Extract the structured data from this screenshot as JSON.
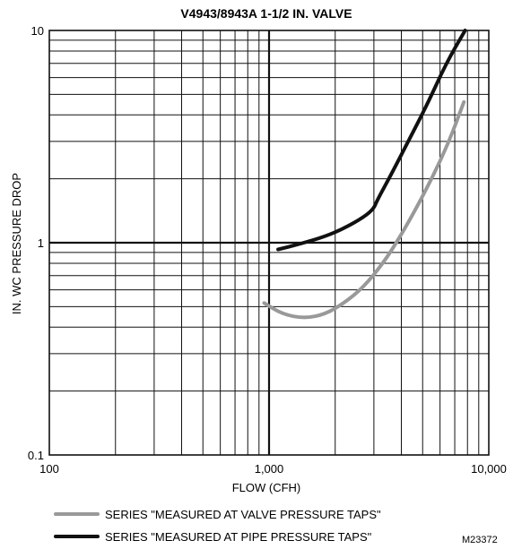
{
  "chart_data": {
    "type": "line",
    "title": "V4943/8943A 1-1/2 IN. VALVE",
    "xlabel": "FLOW (CFH)",
    "ylabel": "IN. WC PRESSURE DROP",
    "x_scale": "log",
    "y_scale": "log",
    "xlim": [
      100,
      10000
    ],
    "ylim": [
      0.1,
      10
    ],
    "x_ticks": [
      {
        "value": 100,
        "label": "100"
      },
      {
        "value": 1000,
        "label": "1,000"
      },
      {
        "value": 10000,
        "label": "10,000"
      }
    ],
    "y_ticks": [
      {
        "value": 0.1,
        "label": "0.1"
      },
      {
        "value": 1,
        "label": "1"
      },
      {
        "value": 10,
        "label": "10"
      }
    ],
    "grid": true,
    "legend_position": "bottom",
    "series": [
      {
        "name": "SERIES \"MEASURED AT VALVE PRESSURE TAPS\"",
        "color": "#999999",
        "points": [
          [
            950,
            0.52
          ],
          [
            1150,
            0.46
          ],
          [
            1450,
            0.44
          ],
          [
            1800,
            0.46
          ],
          [
            2200,
            0.52
          ],
          [
            2700,
            0.62
          ],
          [
            3300,
            0.8
          ],
          [
            3800,
            1.0
          ],
          [
            4500,
            1.35
          ],
          [
            5500,
            2.0
          ],
          [
            6600,
            3.0
          ],
          [
            7700,
            4.6
          ]
        ]
      },
      {
        "name": "SERIES \"MEASURED AT PIPE PRESSURE TAPS\"",
        "color": "#111111",
        "points": [
          [
            1100,
            0.93
          ],
          [
            1400,
            0.99
          ],
          [
            1800,
            1.07
          ],
          [
            2200,
            1.17
          ],
          [
            2700,
            1.32
          ],
          [
            3000,
            1.45
          ],
          [
            3100,
            1.58
          ],
          [
            3600,
            2.1
          ],
          [
            4300,
            3.0
          ],
          [
            5200,
            4.4
          ],
          [
            6400,
            7.0
          ],
          [
            7800,
            10.0
          ]
        ]
      }
    ]
  },
  "figure_id": "M23372"
}
